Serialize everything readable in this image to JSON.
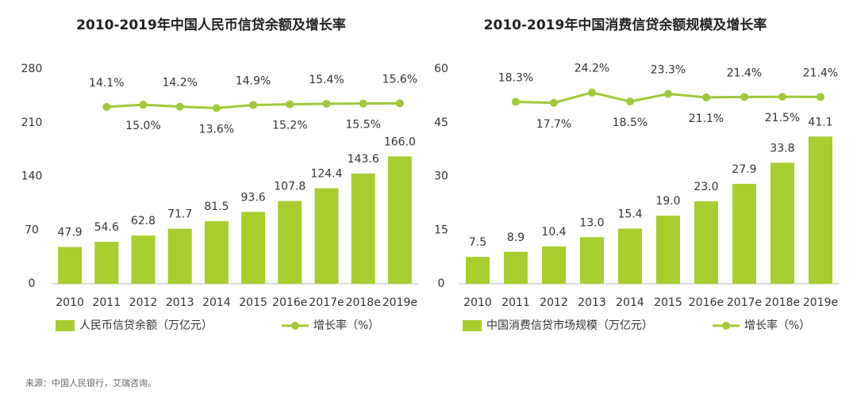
{
  "chart_data": [
    {
      "type": "bar_line",
      "title": "2010-2019年中国人民币信贷余额及增长率",
      "categories": [
        "2010",
        "2011",
        "2012",
        "2013",
        "2014",
        "2015",
        "2016e",
        "2017e",
        "2018e",
        "2019e"
      ],
      "ylim": [
        0,
        280
      ],
      "yticks": [
        0,
        70,
        140,
        210,
        280
      ],
      "y2lim": [
        -60,
        30
      ],
      "series": [
        {
          "name": "人民币信贷余额（万亿元）",
          "color": "#a8cd2e",
          "values": [
            47.9,
            54.6,
            62.8,
            71.7,
            81.5,
            93.6,
            107.8,
            124.4,
            143.6,
            166.0
          ],
          "value_labels": [
            "47.9",
            "54.6",
            "62.8",
            "71.7",
            "81.5",
            "93.6",
            "107.8",
            "124.4",
            "143.6",
            "166.0"
          ]
        },
        {
          "name": "增长率（%）",
          "color": "#a0c83a",
          "axis": "y2",
          "values": [
            null,
            14.1,
            15.0,
            14.2,
            13.6,
            14.9,
            15.2,
            15.4,
            15.5,
            15.6
          ],
          "value_labels": [
            null,
            "14.1%",
            "15.0%",
            "14.2%",
            "13.6%",
            "14.9%",
            "15.2%",
            "15.4%",
            "15.5%",
            "15.6%"
          ]
        }
      ]
    },
    {
      "type": "bar_line",
      "title": "2010-2019年中国消费信贷余额规模及增长率",
      "categories": [
        "2010",
        "2011",
        "2012",
        "2013",
        "2014",
        "2015",
        "2016e",
        "2017e",
        "2018e",
        "2019e"
      ],
      "ylim": [
        0,
        60
      ],
      "yticks": [
        0,
        15,
        30,
        45,
        60
      ],
      "y2lim": [
        -96,
        39
      ],
      "series": [
        {
          "name": "中国消费信贷市场规模（万亿元）",
          "color": "#a8cd2e",
          "values": [
            7.5,
            8.9,
            10.4,
            13.0,
            15.4,
            19.0,
            23.0,
            27.9,
            33.8,
            41.1
          ],
          "value_labels": [
            "7.5",
            "8.9",
            "10.4",
            "13.0",
            "15.4",
            "19.0",
            "23.0",
            "27.9",
            "33.8",
            "41.1"
          ]
        },
        {
          "name": "增长率（%）",
          "color": "#a0c83a",
          "axis": "y2",
          "values": [
            null,
            18.3,
            17.7,
            24.2,
            18.5,
            23.3,
            21.1,
            21.4,
            21.5,
            21.4
          ],
          "value_labels": [
            null,
            "18.3%",
            "17.7%",
            "24.2%",
            "18.5%",
            "23.3%",
            "21.1%",
            "21.4%",
            "21.5%",
            "21.4%"
          ]
        }
      ]
    }
  ],
  "source": "来源：中国人民银行，艾瑞咨询。"
}
